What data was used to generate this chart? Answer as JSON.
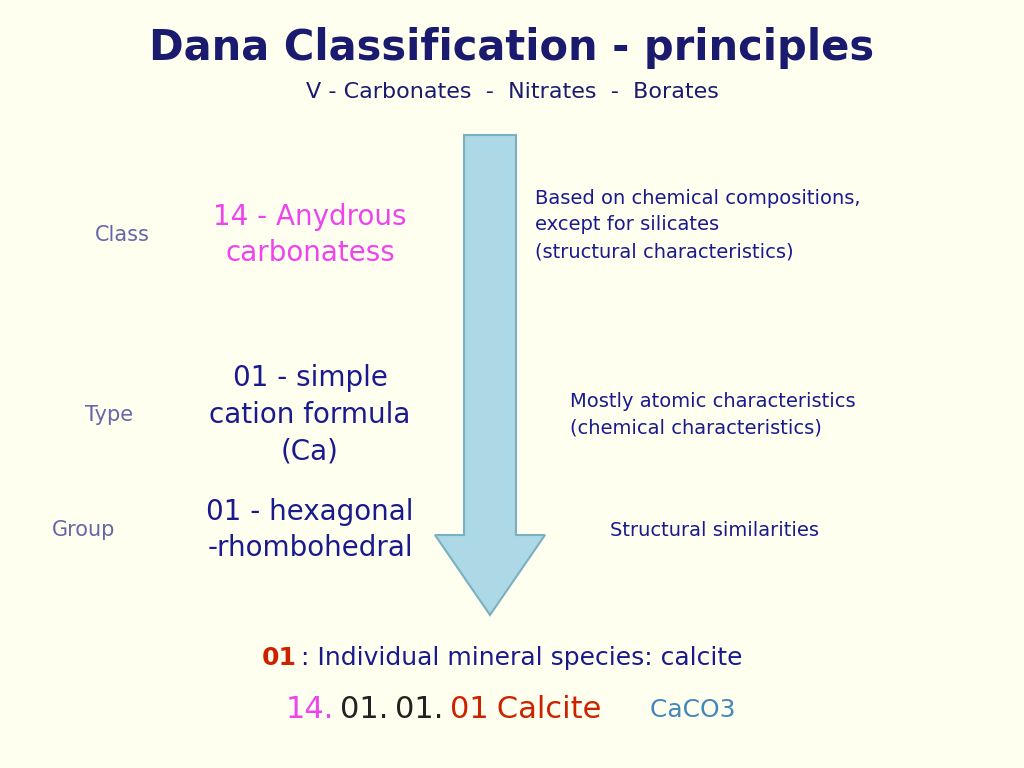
{
  "bg_color": "#FFFFF0",
  "title": "Dana Classification - principles",
  "title_color": "#1a1a6e",
  "subtitle": "V - Carbonates  -  Nitrates  -  Borates",
  "subtitle_color": "#1a1a6e",
  "class_label": "Class",
  "class_label_color": "#6666aa",
  "class_value": "14 - Anydrous\ncarbonatess",
  "class_value_color": "#ee44ee",
  "type_label": "Type",
  "type_label_color": "#6666aa",
  "type_value": "01 - simple\ncation formula\n(Ca)",
  "type_value_color": "#1a1a8e",
  "group_label": "Group",
  "group_label_color": "#6666aa",
  "group_value": "01 - hexagonal\n-rhombohedral",
  "group_value_color": "#1a1a8e",
  "right_class": "Based on chemical compositions,\nexcept for silicates\n(structural characteristics)",
  "right_class_color": "#1a1a8e",
  "right_type": "Mostly atomic characteristics\n(chemical characteristics)",
  "right_type_color": "#1a1a8e",
  "right_group": "Structural similarities",
  "right_group_color": "#1a1a8e",
  "bottom_num": "01",
  "bottom_num_color": "#cc2200",
  "bottom_text": " : Individual mineral species: calcite",
  "bottom_text_color": "#1a1a8e",
  "seg1_text": "14.",
  "seg1_color": "#ee44ee",
  "seg2_text": "01.",
  "seg2_color": "#222222",
  "seg3_text": "01.",
  "seg3_color": "#222222",
  "seg4_text": "01",
  "seg4_color": "#cc2200",
  "seg5_text": " Calcite",
  "seg5_color": "#cc2200",
  "seg6_text": "  CaCO3",
  "seg6_color": "#4488bb",
  "arrow_color": "#add8e6",
  "arrow_edge_color": "#7ab0c0"
}
